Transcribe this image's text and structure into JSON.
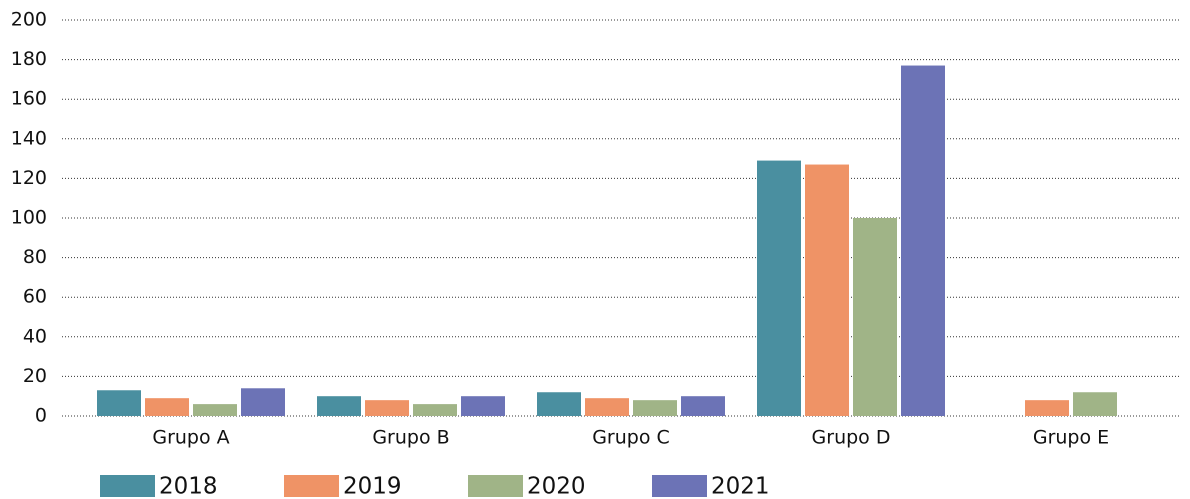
{
  "chart_data": {
    "type": "bar",
    "categories": [
      "Grupo A",
      "Grupo B",
      "Grupo C",
      "Grupo D",
      "Grupo E"
    ],
    "series": [
      {
        "name": "2018",
        "color": "#4a8fa0",
        "values": [
          13,
          10,
          12,
          129,
          null
        ]
      },
      {
        "name": "2019",
        "color": "#ef9366",
        "values": [
          9,
          8,
          9,
          127,
          8
        ]
      },
      {
        "name": "2020",
        "color": "#a0b487",
        "values": [
          6,
          6,
          8,
          100,
          12
        ]
      },
      {
        "name": "2021",
        "color": "#6c73b6",
        "values": [
          14,
          10,
          10,
          177,
          null
        ]
      }
    ],
    "ylim": [
      0,
      200
    ],
    "yticks": [
      0,
      20,
      40,
      60,
      80,
      100,
      120,
      140,
      160,
      180,
      200
    ],
    "grid": true,
    "legend": "bottom"
  }
}
